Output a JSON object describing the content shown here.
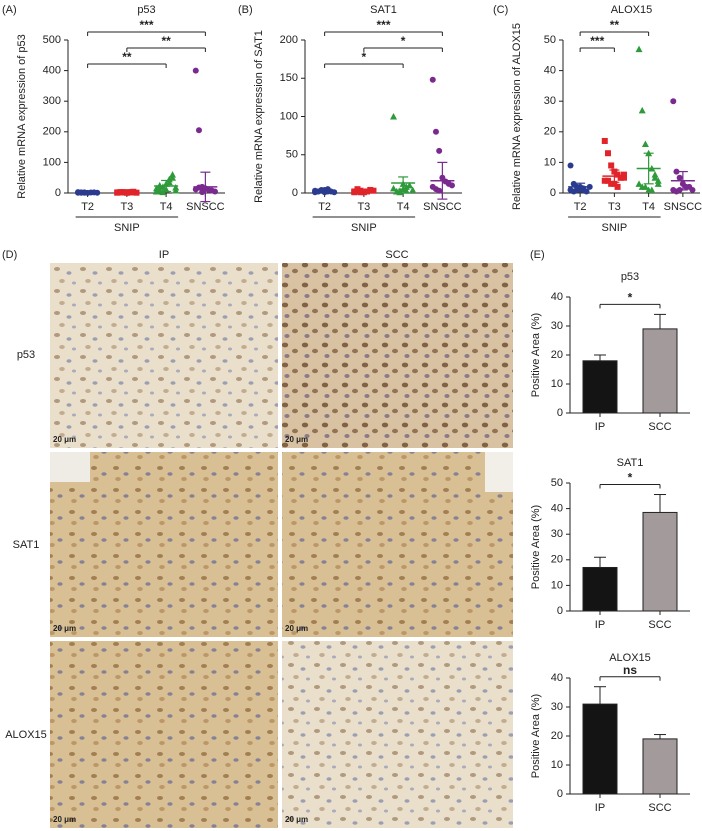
{
  "chart_data": [
    {
      "type": "strip",
      "panel": "(A)",
      "title": "p53",
      "ylabel": "Relative mRNA expression of p53",
      "categories": [
        "T2",
        "T3",
        "T4",
        "SNSCC"
      ],
      "ylim": [
        0,
        500
      ],
      "yticks": [
        0,
        100,
        200,
        300,
        400,
        500
      ],
      "groups": [
        {
          "color": "#2b3b8f",
          "marker": "circle",
          "values": [
            1,
            2,
            1,
            0.5,
            1.5,
            2,
            1,
            3,
            1,
            2
          ]
        },
        {
          "color": "#e0242a",
          "marker": "square",
          "values": [
            1,
            2,
            3,
            1,
            2,
            4,
            1,
            2,
            3,
            2,
            1,
            3,
            2
          ]
        },
        {
          "color": "#2e9a3a",
          "marker": "triangle",
          "values": [
            5,
            10,
            20,
            30,
            45,
            60,
            8,
            15,
            25,
            3,
            12,
            35,
            50,
            18,
            6
          ]
        },
        {
          "color": "#7a2a8f",
          "marker": "circle",
          "values": [
            400,
            205,
            20,
            15,
            10,
            8,
            5,
            12,
            18,
            3
          ]
        }
      ],
      "means": [
        1.5,
        2,
        23,
        20
      ],
      "errors": [
        0.7,
        1,
        18,
        48
      ],
      "annotations": [
        {
          "between": [
            "T2",
            "SNSCC"
          ],
          "label": "***"
        },
        {
          "between": [
            "T3",
            "SNSCC"
          ],
          "label": "**"
        },
        {
          "between": [
            "T2",
            "T4"
          ],
          "label": "**"
        }
      ],
      "group_label": {
        "text": "SNIP",
        "span": [
          "T2",
          "T4"
        ]
      }
    },
    {
      "type": "strip",
      "panel": "(B)",
      "title": "SAT1",
      "ylabel": "Relative mRNA expression of SAT1",
      "categories": [
        "T2",
        "T3",
        "T4",
        "SNSCC"
      ],
      "ylim": [
        0,
        200
      ],
      "yticks": [
        0,
        50,
        100,
        150,
        200
      ],
      "groups": [
        {
          "color": "#2b3b8f",
          "marker": "circle",
          "values": [
            1,
            2,
            3,
            4,
            5,
            2,
            1,
            3,
            2,
            4,
            1,
            2
          ]
        },
        {
          "color": "#e0242a",
          "marker": "square",
          "values": [
            1,
            2,
            3,
            1,
            2,
            4,
            3,
            2,
            5,
            1
          ]
        },
        {
          "color": "#2e9a3a",
          "marker": "triangle",
          "values": [
            100,
            2,
            3,
            5,
            8,
            10,
            4,
            6,
            2,
            1,
            12,
            3
          ]
        },
        {
          "color": "#7a2a8f",
          "marker": "circle",
          "values": [
            148,
            80,
            55,
            20,
            15,
            12,
            10,
            8,
            5,
            3
          ]
        }
      ],
      "means": [
        2.5,
        2.4,
        13,
        16
      ],
      "errors": [
        1.3,
        1.3,
        8,
        24
      ],
      "annotations": [
        {
          "between": [
            "T2",
            "SNSCC"
          ],
          "label": "***"
        },
        {
          "between": [
            "T3",
            "SNSCC"
          ],
          "label": "*"
        },
        {
          "between": [
            "T2",
            "T4"
          ],
          "label": "*"
        }
      ],
      "group_label": {
        "text": "SNIP",
        "span": [
          "T2",
          "T4"
        ]
      }
    },
    {
      "type": "strip",
      "panel": "(C)",
      "title": "ALOX15",
      "ylabel": "Relative mRNA expression of ALOX15",
      "categories": [
        "T2",
        "T3",
        "T4",
        "SNSCC"
      ],
      "ylim": [
        0,
        50
      ],
      "yticks": [
        0,
        10,
        20,
        30,
        40,
        50
      ],
      "groups": [
        {
          "color": "#2b3b8f",
          "marker": "circle",
          "values": [
            9,
            3,
            2,
            1,
            1,
            0.5,
            2,
            1,
            0.5,
            1,
            2,
            1.5
          ]
        },
        {
          "color": "#e0242a",
          "marker": "square",
          "values": [
            17,
            13,
            9,
            7,
            6,
            5,
            5,
            4,
            4,
            3,
            3,
            2,
            5,
            6
          ]
        },
        {
          "color": "#2e9a3a",
          "marker": "triangle",
          "values": [
            47,
            27,
            16,
            13,
            8,
            6,
            4,
            3,
            2,
            2,
            1,
            1,
            5,
            3
          ]
        },
        {
          "color": "#7a2a8f",
          "marker": "circle",
          "values": [
            30,
            7,
            5,
            3,
            2,
            2,
            1,
            1,
            0.5,
            1
          ]
        }
      ],
      "means": [
        2,
        5.5,
        8,
        4
      ],
      "errors": [
        1.2,
        2,
        5,
        3
      ],
      "annotations": [
        {
          "between": [
            "T2",
            "T4"
          ],
          "label": "**"
        },
        {
          "between": [
            "T2",
            "T3"
          ],
          "label": "***"
        }
      ],
      "group_label": {
        "text": "SNIP",
        "span": [
          "T2",
          "T4"
        ]
      }
    },
    {
      "type": "bar",
      "title": "p53",
      "ylabel": "Positive Area (%)",
      "categories": [
        "IP",
        "SCC"
      ],
      "values": [
        18,
        29
      ],
      "errors": [
        2,
        5
      ],
      "colors": [
        "#141414",
        "#a39b9b"
      ],
      "ylim": [
        0,
        40
      ],
      "yticks": [
        0,
        10,
        20,
        30,
        40
      ],
      "annotations": [
        {
          "between": [
            "IP",
            "SCC"
          ],
          "label": "*"
        }
      ]
    },
    {
      "type": "bar",
      "title": "SAT1",
      "ylabel": "Positive Area (%)",
      "categories": [
        "IP",
        "SCC"
      ],
      "values": [
        17,
        38.5
      ],
      "errors": [
        4,
        7
      ],
      "colors": [
        "#141414",
        "#a39b9b"
      ],
      "ylim": [
        0,
        50
      ],
      "yticks": [
        0,
        10,
        20,
        30,
        40,
        50
      ],
      "annotations": [
        {
          "between": [
            "IP",
            "SCC"
          ],
          "label": "*"
        }
      ]
    },
    {
      "type": "bar",
      "title": "ALOX15",
      "ylabel": "Positive Area (%)",
      "categories": [
        "IP",
        "SCC"
      ],
      "values": [
        31,
        19
      ],
      "errors": [
        6,
        1.5
      ],
      "colors": [
        "#141414",
        "#a39b9b"
      ],
      "ylim": [
        0,
        40
      ],
      "yticks": [
        0,
        10,
        20,
        30,
        40
      ],
      "annotations": [
        {
          "between": [
            "IP",
            "SCC"
          ],
          "label": "ns"
        }
      ]
    }
  ],
  "panel_d": {
    "panel": "(D)",
    "columns": [
      "IP",
      "SCC"
    ],
    "rows": [
      "p53",
      "SAT1",
      "ALOX15"
    ],
    "scale_bar": "20 μm"
  },
  "panel_e": {
    "panel": "(E)"
  }
}
